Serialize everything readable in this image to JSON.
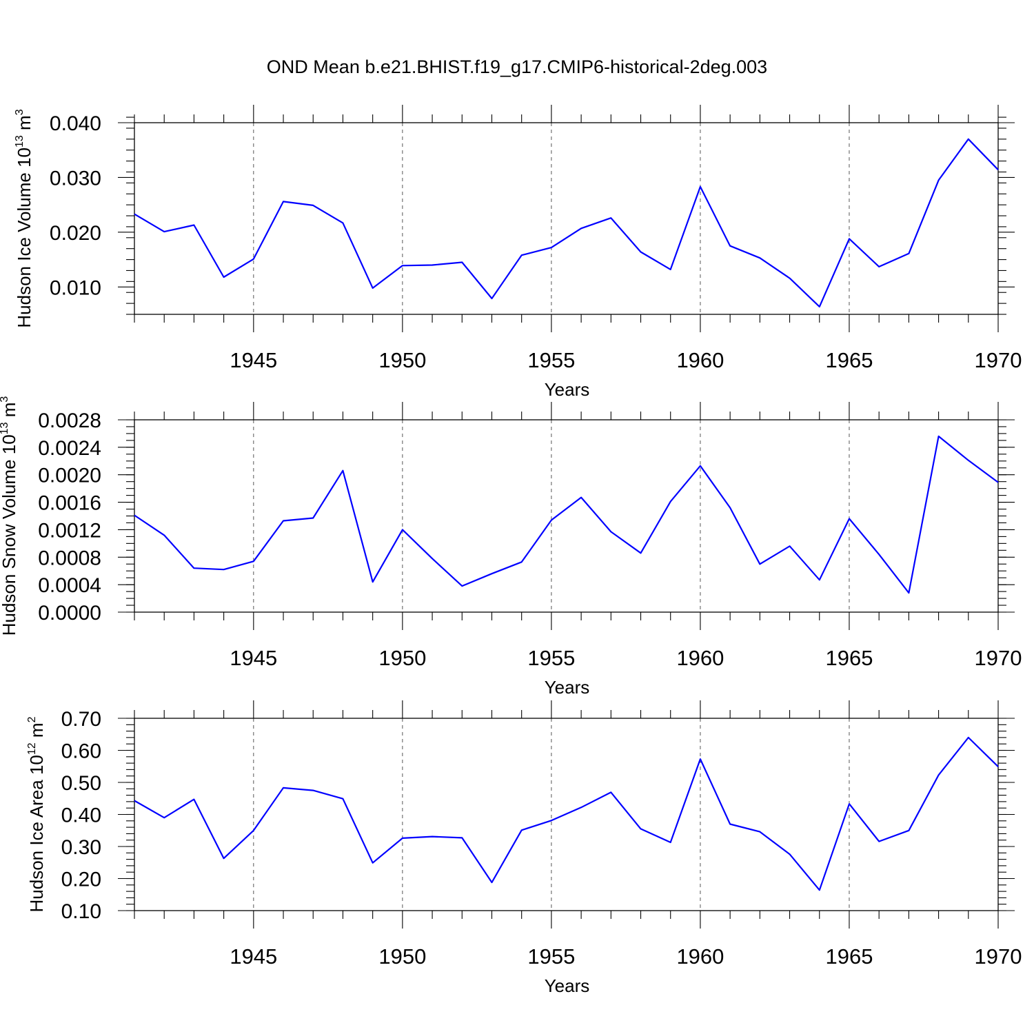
{
  "title": "OND Mean b.e21.BHIST.f19_g17.CMIP6-historical-2deg.003",
  "colors": {
    "line": "#0000ff",
    "axis": "#000000",
    "grid": "#555555"
  },
  "chart_data": [
    {
      "type": "line",
      "name": "ice-volume",
      "ylabel": "Hudson Ice Volume 10",
      "ylabel_exp": "13",
      "ylabel_unit": " m",
      "ylabel_unit_exp": "3",
      "xlabel": "Years",
      "xlim": [
        1941,
        1970
      ],
      "ylim": [
        0.005,
        0.04
      ],
      "yticks": [
        0.01,
        0.02,
        0.03,
        0.04
      ],
      "ytick_labels": [
        "0.010",
        "0.020",
        "0.030",
        "0.040"
      ],
      "yminor_step": 0.002,
      "xticks": [
        1945,
        1950,
        1955,
        1960,
        1965,
        1970
      ],
      "xtick_labels": [
        "1945",
        "1950",
        "1955",
        "1960",
        "1965",
        "1970"
      ],
      "grid_x": true,
      "series": [
        {
          "name": "Hudson Ice Volume",
          "x": [
            1941,
            1942,
            1943,
            1944,
            1945,
            1946,
            1947,
            1948,
            1949,
            1950,
            1951,
            1952,
            1953,
            1954,
            1955,
            1956,
            1957,
            1958,
            1959,
            1960,
            1961,
            1962,
            1963,
            1964,
            1965,
            1966,
            1967,
            1968,
            1969,
            1970
          ],
          "values": [
            0.0233,
            0.0201,
            0.0213,
            0.0118,
            0.0151,
            0.0256,
            0.0249,
            0.0217,
            0.0098,
            0.0139,
            0.014,
            0.0145,
            0.0079,
            0.0158,
            0.0172,
            0.0207,
            0.0226,
            0.0164,
            0.0132,
            0.0283,
            0.0175,
            0.0153,
            0.0116,
            0.0064,
            0.0188,
            0.0137,
            0.0161,
            0.0295,
            0.037,
            0.0314
          ]
        }
      ]
    },
    {
      "type": "line",
      "name": "snow-volume",
      "ylabel": "Hudson Snow Volume 10",
      "ylabel_exp": "13",
      "ylabel_unit": " m",
      "ylabel_unit_exp": "3",
      "xlabel": "Years",
      "xlim": [
        1941,
        1970
      ],
      "ylim": [
        0.0,
        0.0028
      ],
      "yticks": [
        0.0,
        0.0004,
        0.0008,
        0.0012,
        0.0016,
        0.002,
        0.0024,
        0.0028
      ],
      "ytick_labels": [
        "0.0000",
        "0.0004",
        "0.0008",
        "0.0012",
        "0.0016",
        "0.0020",
        "0.0024",
        "0.0028"
      ],
      "yminor_step": 0.0001,
      "xticks": [
        1945,
        1950,
        1955,
        1960,
        1965,
        1970
      ],
      "xtick_labels": [
        "1945",
        "1950",
        "1955",
        "1960",
        "1965",
        "1970"
      ],
      "grid_x": true,
      "series": [
        {
          "name": "Hudson Snow Volume",
          "x": [
            1941,
            1942,
            1943,
            1944,
            1945,
            1946,
            1947,
            1948,
            1949,
            1950,
            1951,
            1952,
            1953,
            1954,
            1955,
            1956,
            1957,
            1958,
            1959,
            1960,
            1961,
            1962,
            1963,
            1964,
            1965,
            1966,
            1967,
            1968,
            1969,
            1970
          ],
          "values": [
            0.00141,
            0.00112,
            0.00064,
            0.00062,
            0.00074,
            0.00133,
            0.00137,
            0.00206,
            0.00044,
            0.0012,
            0.00078,
            0.00038,
            0.00056,
            0.00073,
            0.00134,
            0.00167,
            0.00117,
            0.00086,
            0.00161,
            0.00213,
            0.00152,
            0.0007,
            0.00096,
            0.00047,
            0.00136,
            0.00084,
            0.00028,
            0.00256,
            0.00221,
            0.00189
          ]
        }
      ]
    },
    {
      "type": "line",
      "name": "ice-area",
      "ylabel": "Hudson Ice Area 10",
      "ylabel_exp": "12",
      "ylabel_unit": " m",
      "ylabel_unit_exp": "2",
      "xlabel": "Years",
      "xlim": [
        1941,
        1970
      ],
      "ylim": [
        0.1,
        0.7
      ],
      "yticks": [
        0.1,
        0.2,
        0.3,
        0.4,
        0.5,
        0.6,
        0.7
      ],
      "ytick_labels": [
        "0.10",
        "0.20",
        "0.30",
        "0.40",
        "0.50",
        "0.60",
        "0.70"
      ],
      "yminor_step": 0.02,
      "xticks": [
        1945,
        1950,
        1955,
        1960,
        1965,
        1970
      ],
      "xtick_labels": [
        "1945",
        "1950",
        "1955",
        "1960",
        "1965",
        "1970"
      ],
      "grid_x": true,
      "series": [
        {
          "name": "Hudson Ice Area",
          "x": [
            1941,
            1942,
            1943,
            1944,
            1945,
            1946,
            1947,
            1948,
            1949,
            1950,
            1951,
            1952,
            1953,
            1954,
            1955,
            1956,
            1957,
            1958,
            1959,
            1960,
            1961,
            1962,
            1963,
            1964,
            1965,
            1966,
            1967,
            1968,
            1969,
            1970
          ],
          "values": [
            0.443,
            0.39,
            0.447,
            0.263,
            0.35,
            0.483,
            0.475,
            0.449,
            0.249,
            0.326,
            0.331,
            0.327,
            0.188,
            0.351,
            0.381,
            0.422,
            0.469,
            0.355,
            0.313,
            0.573,
            0.37,
            0.346,
            0.276,
            0.164,
            0.433,
            0.316,
            0.35,
            0.523,
            0.64,
            0.549
          ]
        }
      ]
    }
  ]
}
